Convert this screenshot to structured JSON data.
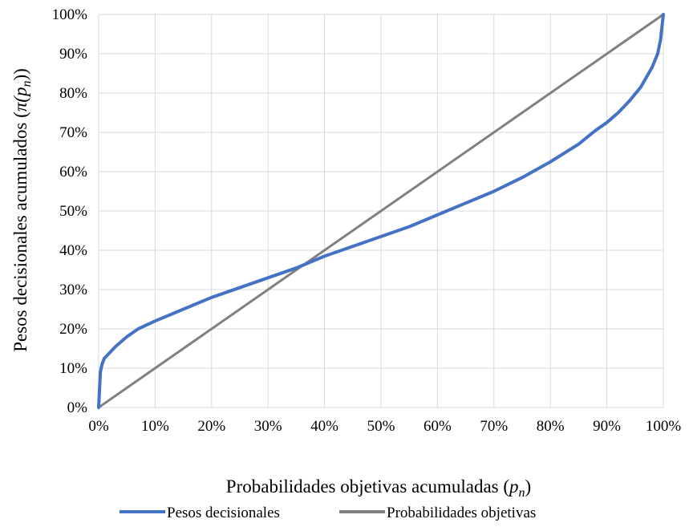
{
  "chart_data": {
    "type": "line",
    "title": "",
    "xlabel": {
      "text": "Probabilidades objetivas acumuladas (",
      "symbol": "p",
      "sub": "n",
      "close": ")"
    },
    "ylabel": {
      "text": "Pesos decisionales acumulados (",
      "symbol": "π(p",
      "sub": "n",
      "close": "))"
    },
    "xlim": [
      0,
      1
    ],
    "ylim": [
      0,
      1
    ],
    "x_ticks": [
      0,
      0.1,
      0.2,
      0.3,
      0.4,
      0.5,
      0.6,
      0.7,
      0.8,
      0.9,
      1.0
    ],
    "x_tick_labels": [
      "0%",
      "10%",
      "20%",
      "30%",
      "40%",
      "50%",
      "60%",
      "70%",
      "80%",
      "90%",
      "100%"
    ],
    "y_ticks": [
      0,
      0.1,
      0.2,
      0.3,
      0.4,
      0.5,
      0.6,
      0.7,
      0.8,
      0.9,
      1.0
    ],
    "y_tick_labels": [
      "0%",
      "10%",
      "20%",
      "30%",
      "40%",
      "50%",
      "60%",
      "70%",
      "80%",
      "90%",
      "100%"
    ],
    "grid": true,
    "legend": "bottom",
    "series": [
      {
        "name": "Pesos decisionales",
        "color": "#4472c4",
        "x": [
          0,
          0.003,
          0.006,
          0.01,
          0.02,
          0.03,
          0.05,
          0.07,
          0.1,
          0.15,
          0.2,
          0.25,
          0.3,
          0.35,
          0.4,
          0.45,
          0.5,
          0.55,
          0.6,
          0.65,
          0.7,
          0.75,
          0.8,
          0.85,
          0.88,
          0.9,
          0.92,
          0.94,
          0.96,
          0.97,
          0.98,
          0.99,
          0.995,
          1.0
        ],
        "y": [
          0,
          0.09,
          0.11,
          0.125,
          0.14,
          0.155,
          0.18,
          0.2,
          0.22,
          0.25,
          0.28,
          0.305,
          0.33,
          0.355,
          0.385,
          0.41,
          0.435,
          0.46,
          0.49,
          0.52,
          0.55,
          0.585,
          0.625,
          0.67,
          0.705,
          0.725,
          0.75,
          0.78,
          0.815,
          0.84,
          0.865,
          0.9,
          0.935,
          1.0
        ]
      },
      {
        "name": "Probabilidades objetivas",
        "color": "#808080",
        "x": [
          0,
          1
        ],
        "y": [
          0,
          1
        ]
      }
    ]
  }
}
